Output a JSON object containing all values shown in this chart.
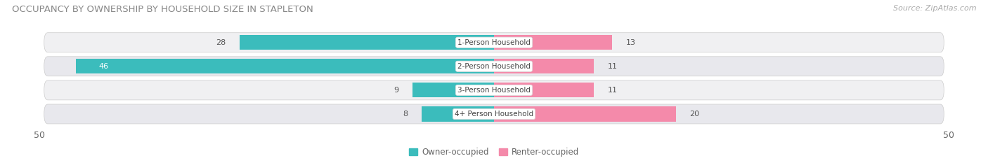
{
  "title": "OCCUPANCY BY OWNERSHIP BY HOUSEHOLD SIZE IN STAPLETON",
  "source": "Source: ZipAtlas.com",
  "categories": [
    "1-Person Household",
    "2-Person Household",
    "3-Person Household",
    "4+ Person Household"
  ],
  "owner_values": [
    28,
    46,
    9,
    8
  ],
  "renter_values": [
    13,
    11,
    11,
    20
  ],
  "owner_color": "#3bbcbc",
  "renter_color": "#f48aaa",
  "row_bg_color_odd": "#f0f0f2",
  "row_bg_color_even": "#e8e8ed",
  "label_bg_color": "#ffffff",
  "xlim": 50,
  "title_fontsize": 9.5,
  "source_fontsize": 8,
  "label_fontsize": 7.5,
  "value_fontsize": 8,
  "axis_label_fontsize": 9,
  "legend_fontsize": 8.5,
  "fig_bg_color": "#ffffff"
}
